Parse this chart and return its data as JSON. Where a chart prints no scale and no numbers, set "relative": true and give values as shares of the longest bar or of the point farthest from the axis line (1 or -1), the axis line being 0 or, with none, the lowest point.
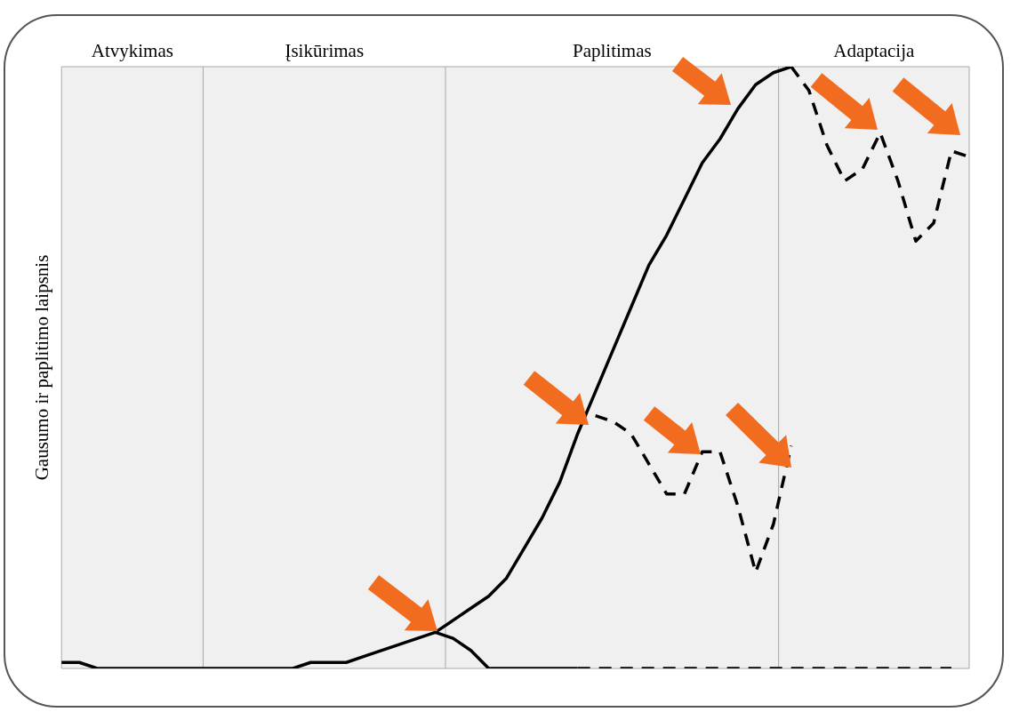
{
  "chart_data": {
    "type": "line",
    "relative": true,
    "ylabel": "Gausumo ir paplitimo laipsnis",
    "legend": false,
    "marker": "none",
    "annotations": [
      "Atvykimas",
      "Įsikūrimas",
      "Paplitimas",
      "Adaptacija"
    ],
    "categories": [
      null,
      null,
      null,
      null,
      null,
      null,
      null,
      null,
      null,
      null,
      null,
      null,
      null,
      null,
      null,
      null,
      null,
      null,
      null,
      null,
      null,
      null,
      null,
      null,
      null,
      null,
      null,
      null,
      null,
      null,
      null,
      null,
      null,
      null,
      null,
      null,
      null,
      null,
      null,
      null,
      null,
      null,
      null,
      null,
      null,
      null,
      null,
      null,
      null,
      null,
      null,
      null
    ],
    "series": [
      {
        "color": "#000000",
        "line_style": "solid",
        "values": [
          0.01,
          0.01,
          0.0,
          0.0,
          0.0,
          0.0,
          0.0,
          0,
          0,
          0,
          0,
          0,
          0.0,
          0.0,
          0.01,
          0.01,
          0.01,
          0.02,
          0.03,
          0.04,
          0.05,
          0.06,
          0.08,
          0.1,
          0.12,
          0.15,
          0.2,
          0.25,
          0.31,
          0.39,
          0.46,
          0.53,
          0.6,
          0.67,
          0.72,
          0.78,
          0.84,
          0.88,
          0.93,
          0.97,
          0.99,
          1.0,
          null,
          null,
          null,
          null,
          null,
          null,
          null,
          null,
          null,
          null
        ]
      },
      {
        "color": "#000000",
        "line_style": "solid",
        "values": [
          null,
          null,
          null,
          null,
          null,
          null,
          null,
          null,
          null,
          null,
          null,
          null,
          null,
          null,
          null,
          null,
          null,
          null,
          null,
          null,
          null,
          0.06,
          0.05,
          0.03,
          0.0,
          0.0,
          0.0,
          0.0,
          0.0,
          0.0,
          null,
          null,
          null,
          null,
          null,
          null,
          null,
          null,
          null,
          null,
          null,
          null,
          null,
          null,
          null,
          null,
          null,
          null,
          null,
          null,
          null,
          null
        ]
      },
      {
        "color": "#000000",
        "line_style": "dashed",
        "values": [
          null,
          null,
          null,
          null,
          null,
          null,
          null,
          null,
          null,
          null,
          null,
          null,
          null,
          null,
          null,
          null,
          null,
          null,
          null,
          null,
          null,
          null,
          null,
          null,
          null,
          null,
          null,
          null,
          null,
          0.0,
          0.0,
          0.0,
          0.0,
          0.0,
          0.0,
          0.0,
          0.0,
          0.0,
          0.0,
          0.0,
          0.0,
          0.0,
          0.0,
          0.0,
          0.0,
          0.0,
          0.0,
          0.0,
          0.0,
          0.0,
          0.0,
          null
        ]
      },
      {
        "color": "#000000",
        "line_style": "dashed",
        "values": [
          null,
          null,
          null,
          null,
          null,
          null,
          null,
          null,
          null,
          null,
          null,
          null,
          null,
          null,
          null,
          null,
          null,
          null,
          null,
          null,
          null,
          null,
          null,
          null,
          null,
          null,
          null,
          null,
          null,
          null,
          0.42,
          0.41,
          0.39,
          0.34,
          0.29,
          0.29,
          0.36,
          0.36,
          0.27,
          0.16,
          0.24,
          0.37,
          null,
          null,
          null,
          null,
          null,
          null,
          null,
          null,
          null,
          null
        ]
      },
      {
        "color": "#000000",
        "line_style": "dashed",
        "values": [
          null,
          null,
          null,
          null,
          null,
          null,
          null,
          null,
          null,
          null,
          null,
          null,
          null,
          null,
          null,
          null,
          null,
          null,
          null,
          null,
          null,
          null,
          null,
          null,
          null,
          null,
          null,
          null,
          null,
          null,
          null,
          null,
          null,
          null,
          null,
          null,
          null,
          null,
          null,
          null,
          null,
          1.0,
          0.96,
          0.87,
          0.81,
          0.83,
          0.89,
          0.81,
          0.71,
          0.74,
          0.86,
          0.85
        ]
      }
    ]
  }
}
